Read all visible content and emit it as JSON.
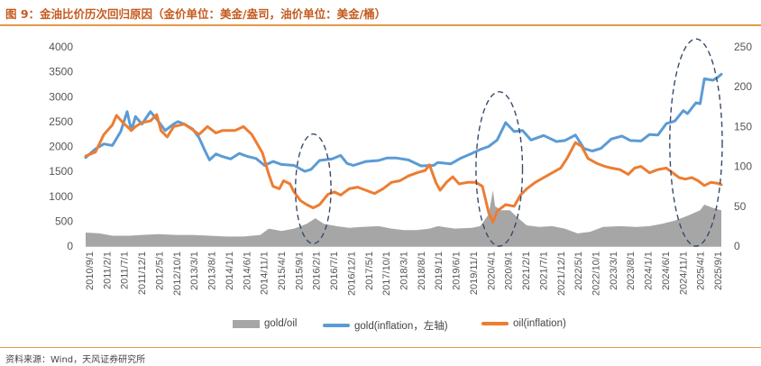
{
  "header": {
    "title": "图 9：金油比价历次回归原因（金价单位：美金/盎司，油价单位：美金/桶）"
  },
  "footer": {
    "source": "资料来源：Wind，天风证券研究所"
  },
  "colors": {
    "gold": "#5b9bd5",
    "oil": "#ed7d31",
    "ratio": "#a6a6a6",
    "accent": "#e39a48",
    "ellipse": "#3a4a6b"
  },
  "chart_data": {
    "type": "line",
    "title": "",
    "left_axis": {
      "min": 0,
      "max": 4000,
      "ticks": [
        "0",
        "500",
        "1000",
        "1500",
        "2000",
        "2500",
        "3000",
        "3500",
        "4000"
      ]
    },
    "right_axis": {
      "min": 0,
      "max": 250,
      "ticks": [
        "0",
        "50",
        "100",
        "150",
        "200",
        "250"
      ]
    },
    "x_labels": [
      "2010/9/1",
      "2011/2/1",
      "2011/7/1",
      "2011/12/1",
      "2012/5/1",
      "2012/10/1",
      "2013/3/1",
      "2013/8/1",
      "2014/1/1",
      "2014/6/1",
      "2014/11/1",
      "2015/4/1",
      "2015/9/1",
      "2016/2/1",
      "2016/7/1",
      "2016/12/1",
      "2017/5/1",
      "2017/10/1",
      "2018/3/1",
      "2018/8/1",
      "2019/1/1",
      "2019/6/1",
      "2019/11/1",
      "2020/4/1",
      "2020/9/1",
      "2021/2/1",
      "2021/7/1",
      "2021/12/1",
      "2022/5/1",
      "2022/10/1",
      "2023/3/1",
      "2023/8/1",
      "2024/1/1",
      "2024/6/1",
      "2024/11/1",
      "2025/4/1",
      "2025/9/1"
    ],
    "x_range": [
      2010.67,
      2025.7
    ],
    "series": [
      {
        "name": "gold/oil",
        "axis": "right",
        "kind": "area",
        "points": [
          [
            2010.67,
            17
          ],
          [
            2011.0,
            16
          ],
          [
            2011.3,
            13
          ],
          [
            2011.7,
            13
          ],
          [
            2012.0,
            14
          ],
          [
            2012.4,
            15
          ],
          [
            2012.8,
            14
          ],
          [
            2013.2,
            14
          ],
          [
            2013.6,
            13
          ],
          [
            2014.0,
            12
          ],
          [
            2014.4,
            12
          ],
          [
            2014.8,
            14
          ],
          [
            2015.0,
            22
          ],
          [
            2015.3,
            19
          ],
          [
            2015.6,
            22
          ],
          [
            2015.9,
            28
          ],
          [
            2016.1,
            35
          ],
          [
            2016.3,
            28
          ],
          [
            2016.6,
            25
          ],
          [
            2016.9,
            23
          ],
          [
            2017.2,
            24
          ],
          [
            2017.6,
            25
          ],
          [
            2017.9,
            22
          ],
          [
            2018.2,
            20
          ],
          [
            2018.5,
            20
          ],
          [
            2018.8,
            22
          ],
          [
            2019.0,
            25
          ],
          [
            2019.4,
            22
          ],
          [
            2019.8,
            23
          ],
          [
            2020.0,
            25
          ],
          [
            2020.2,
            40
          ],
          [
            2020.3,
            70
          ],
          [
            2020.35,
            50
          ],
          [
            2020.5,
            45
          ],
          [
            2020.7,
            45
          ],
          [
            2020.9,
            35
          ],
          [
            2021.1,
            26
          ],
          [
            2021.4,
            24
          ],
          [
            2021.7,
            25
          ],
          [
            2022.0,
            22
          ],
          [
            2022.3,
            16
          ],
          [
            2022.6,
            18
          ],
          [
            2022.9,
            24
          ],
          [
            2023.3,
            25
          ],
          [
            2023.7,
            24
          ],
          [
            2024.0,
            25
          ],
          [
            2024.3,
            28
          ],
          [
            2024.6,
            32
          ],
          [
            2024.9,
            38
          ],
          [
            2025.2,
            45
          ],
          [
            2025.3,
            52
          ],
          [
            2025.5,
            48
          ],
          [
            2025.7,
            45
          ]
        ]
      },
      {
        "name": "gold(inflation，左轴)",
        "axis": "left",
        "kind": "line",
        "points": [
          [
            2010.67,
            1780
          ],
          [
            2010.9,
            1950
          ],
          [
            2011.1,
            2050
          ],
          [
            2011.3,
            2020
          ],
          [
            2011.5,
            2300
          ],
          [
            2011.65,
            2700
          ],
          [
            2011.75,
            2320
          ],
          [
            2011.85,
            2600
          ],
          [
            2012.0,
            2450
          ],
          [
            2012.2,
            2700
          ],
          [
            2012.35,
            2550
          ],
          [
            2012.55,
            2320
          ],
          [
            2012.75,
            2450
          ],
          [
            2012.85,
            2500
          ],
          [
            2013.0,
            2450
          ],
          [
            2013.2,
            2350
          ],
          [
            2013.35,
            2180
          ],
          [
            2013.5,
            1900
          ],
          [
            2013.6,
            1730
          ],
          [
            2013.75,
            1850
          ],
          [
            2013.9,
            1800
          ],
          [
            2014.1,
            1750
          ],
          [
            2014.3,
            1860
          ],
          [
            2014.5,
            1800
          ],
          [
            2014.7,
            1760
          ],
          [
            2014.9,
            1620
          ],
          [
            2015.1,
            1700
          ],
          [
            2015.3,
            1640
          ],
          [
            2015.6,
            1620
          ],
          [
            2015.85,
            1500
          ],
          [
            2016.0,
            1540
          ],
          [
            2016.2,
            1720
          ],
          [
            2016.5,
            1750
          ],
          [
            2016.7,
            1820
          ],
          [
            2016.85,
            1660
          ],
          [
            2017.0,
            1620
          ],
          [
            2017.3,
            1700
          ],
          [
            2017.6,
            1720
          ],
          [
            2017.8,
            1770
          ],
          [
            2018.0,
            1770
          ],
          [
            2018.3,
            1730
          ],
          [
            2018.6,
            1610
          ],
          [
            2018.9,
            1620
          ],
          [
            2019.0,
            1680
          ],
          [
            2019.3,
            1650
          ],
          [
            2019.55,
            1770
          ],
          [
            2019.8,
            1860
          ],
          [
            2020.0,
            1940
          ],
          [
            2020.2,
            2000
          ],
          [
            2020.4,
            2130
          ],
          [
            2020.6,
            2480
          ],
          [
            2020.8,
            2300
          ],
          [
            2021.0,
            2320
          ],
          [
            2021.2,
            2130
          ],
          [
            2021.5,
            2220
          ],
          [
            2021.8,
            2100
          ],
          [
            2022.0,
            2120
          ],
          [
            2022.25,
            2230
          ],
          [
            2022.45,
            1960
          ],
          [
            2022.65,
            1910
          ],
          [
            2022.85,
            1960
          ],
          [
            2023.1,
            2150
          ],
          [
            2023.35,
            2210
          ],
          [
            2023.55,
            2120
          ],
          [
            2023.8,
            2110
          ],
          [
            2024.0,
            2240
          ],
          [
            2024.2,
            2230
          ],
          [
            2024.4,
            2460
          ],
          [
            2024.6,
            2510
          ],
          [
            2024.8,
            2720
          ],
          [
            2024.9,
            2660
          ],
          [
            2025.1,
            2880
          ],
          [
            2025.2,
            2860
          ],
          [
            2025.3,
            3360
          ],
          [
            2025.5,
            3330
          ],
          [
            2025.6,
            3380
          ],
          [
            2025.7,
            3450
          ]
        ]
      },
      {
        "name": "oil(inflation)",
        "axis": "right",
        "kind": "line",
        "points": [
          [
            2010.67,
            113
          ],
          [
            2010.9,
            118
          ],
          [
            2011.1,
            140
          ],
          [
            2011.3,
            152
          ],
          [
            2011.4,
            164
          ],
          [
            2011.55,
            155
          ],
          [
            2011.75,
            145
          ],
          [
            2011.85,
            150
          ],
          [
            2012.0,
            155
          ],
          [
            2012.2,
            157
          ],
          [
            2012.35,
            165
          ],
          [
            2012.45,
            145
          ],
          [
            2012.6,
            137
          ],
          [
            2012.75,
            150
          ],
          [
            2013.0,
            153
          ],
          [
            2013.2,
            146
          ],
          [
            2013.35,
            140
          ],
          [
            2013.55,
            150
          ],
          [
            2013.75,
            142
          ],
          [
            2013.9,
            145
          ],
          [
            2014.2,
            145
          ],
          [
            2014.4,
            150
          ],
          [
            2014.6,
            140
          ],
          [
            2014.85,
            117
          ],
          [
            2015.0,
            90
          ],
          [
            2015.1,
            75
          ],
          [
            2015.25,
            72
          ],
          [
            2015.35,
            82
          ],
          [
            2015.5,
            78
          ],
          [
            2015.6,
            68
          ],
          [
            2015.75,
            57
          ],
          [
            2015.9,
            52
          ],
          [
            2016.05,
            48
          ],
          [
            2016.2,
            52
          ],
          [
            2016.4,
            65
          ],
          [
            2016.55,
            68
          ],
          [
            2016.7,
            64
          ],
          [
            2016.9,
            72
          ],
          [
            2017.1,
            74
          ],
          [
            2017.3,
            70
          ],
          [
            2017.5,
            66
          ],
          [
            2017.7,
            72
          ],
          [
            2017.9,
            80
          ],
          [
            2018.1,
            82
          ],
          [
            2018.3,
            88
          ],
          [
            2018.5,
            92
          ],
          [
            2018.7,
            95
          ],
          [
            2018.8,
            102
          ],
          [
            2018.95,
            80
          ],
          [
            2019.05,
            70
          ],
          [
            2019.2,
            80
          ],
          [
            2019.35,
            87
          ],
          [
            2019.5,
            78
          ],
          [
            2019.7,
            80
          ],
          [
            2019.9,
            80
          ],
          [
            2020.05,
            75
          ],
          [
            2020.2,
            42
          ],
          [
            2020.3,
            30
          ],
          [
            2020.4,
            44
          ],
          [
            2020.6,
            52
          ],
          [
            2020.8,
            50
          ],
          [
            2020.95,
            64
          ],
          [
            2021.1,
            72
          ],
          [
            2021.3,
            80
          ],
          [
            2021.5,
            86
          ],
          [
            2021.7,
            92
          ],
          [
            2021.9,
            98
          ],
          [
            2022.05,
            110
          ],
          [
            2022.25,
            130
          ],
          [
            2022.4,
            125
          ],
          [
            2022.55,
            110
          ],
          [
            2022.75,
            104
          ],
          [
            2022.95,
            100
          ],
          [
            2023.1,
            98
          ],
          [
            2023.3,
            96
          ],
          [
            2023.5,
            90
          ],
          [
            2023.65,
            98
          ],
          [
            2023.8,
            100
          ],
          [
            2024.0,
            92
          ],
          [
            2024.2,
            96
          ],
          [
            2024.4,
            98
          ],
          [
            2024.55,
            92
          ],
          [
            2024.7,
            86
          ],
          [
            2024.85,
            84
          ],
          [
            2025.0,
            86
          ],
          [
            2025.15,
            82
          ],
          [
            2025.3,
            76
          ],
          [
            2025.45,
            80
          ],
          [
            2025.6,
            79
          ],
          [
            2025.7,
            77
          ]
        ]
      }
    ],
    "legend": [
      "gold/oil",
      "gold(inflation，左轴)",
      "oil(inflation)"
    ],
    "annotations": [
      {
        "kind": "dashed-ellipse",
        "cx": 2016.05,
        "cy_left": 1150,
        "rx_years": 0.42,
        "ry_left": 1100
      },
      {
        "kind": "dashed-ellipse",
        "cx": 2020.45,
        "cy_left": 1550,
        "rx_years": 0.55,
        "ry_left": 1550
      },
      {
        "kind": "dashed-ellipse",
        "cx": 2025.1,
        "cy_left": 2080,
        "rx_years": 0.62,
        "ry_left": 2080
      }
    ]
  }
}
